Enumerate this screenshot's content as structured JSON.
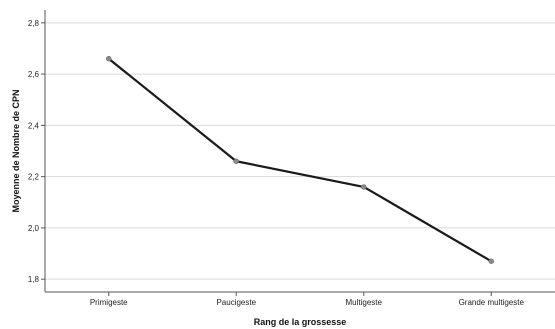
{
  "chart_data": {
    "type": "line",
    "title": "",
    "xlabel": "Rang de la grossesse",
    "ylabel": "Moyenne de Nombre de CPN",
    "categories": [
      "Primigeste",
      "Paucigeste",
      "Multigeste",
      "Grande multigeste"
    ],
    "series": [
      {
        "values": [
          2.66,
          2.26,
          2.16,
          1.87
        ]
      }
    ],
    "ylim": [
      1.75,
      2.85
    ],
    "yticks": [
      "1,8",
      "2,0",
      "2,2",
      "2,4",
      "2,6",
      "2,8"
    ],
    "grid": "horizontal",
    "legend": "none",
    "colors": {
      "line": "#1a1a1a",
      "marker": "#8c8c8c",
      "grid": "#d9d9d9",
      "axis": "#555555"
    }
  }
}
